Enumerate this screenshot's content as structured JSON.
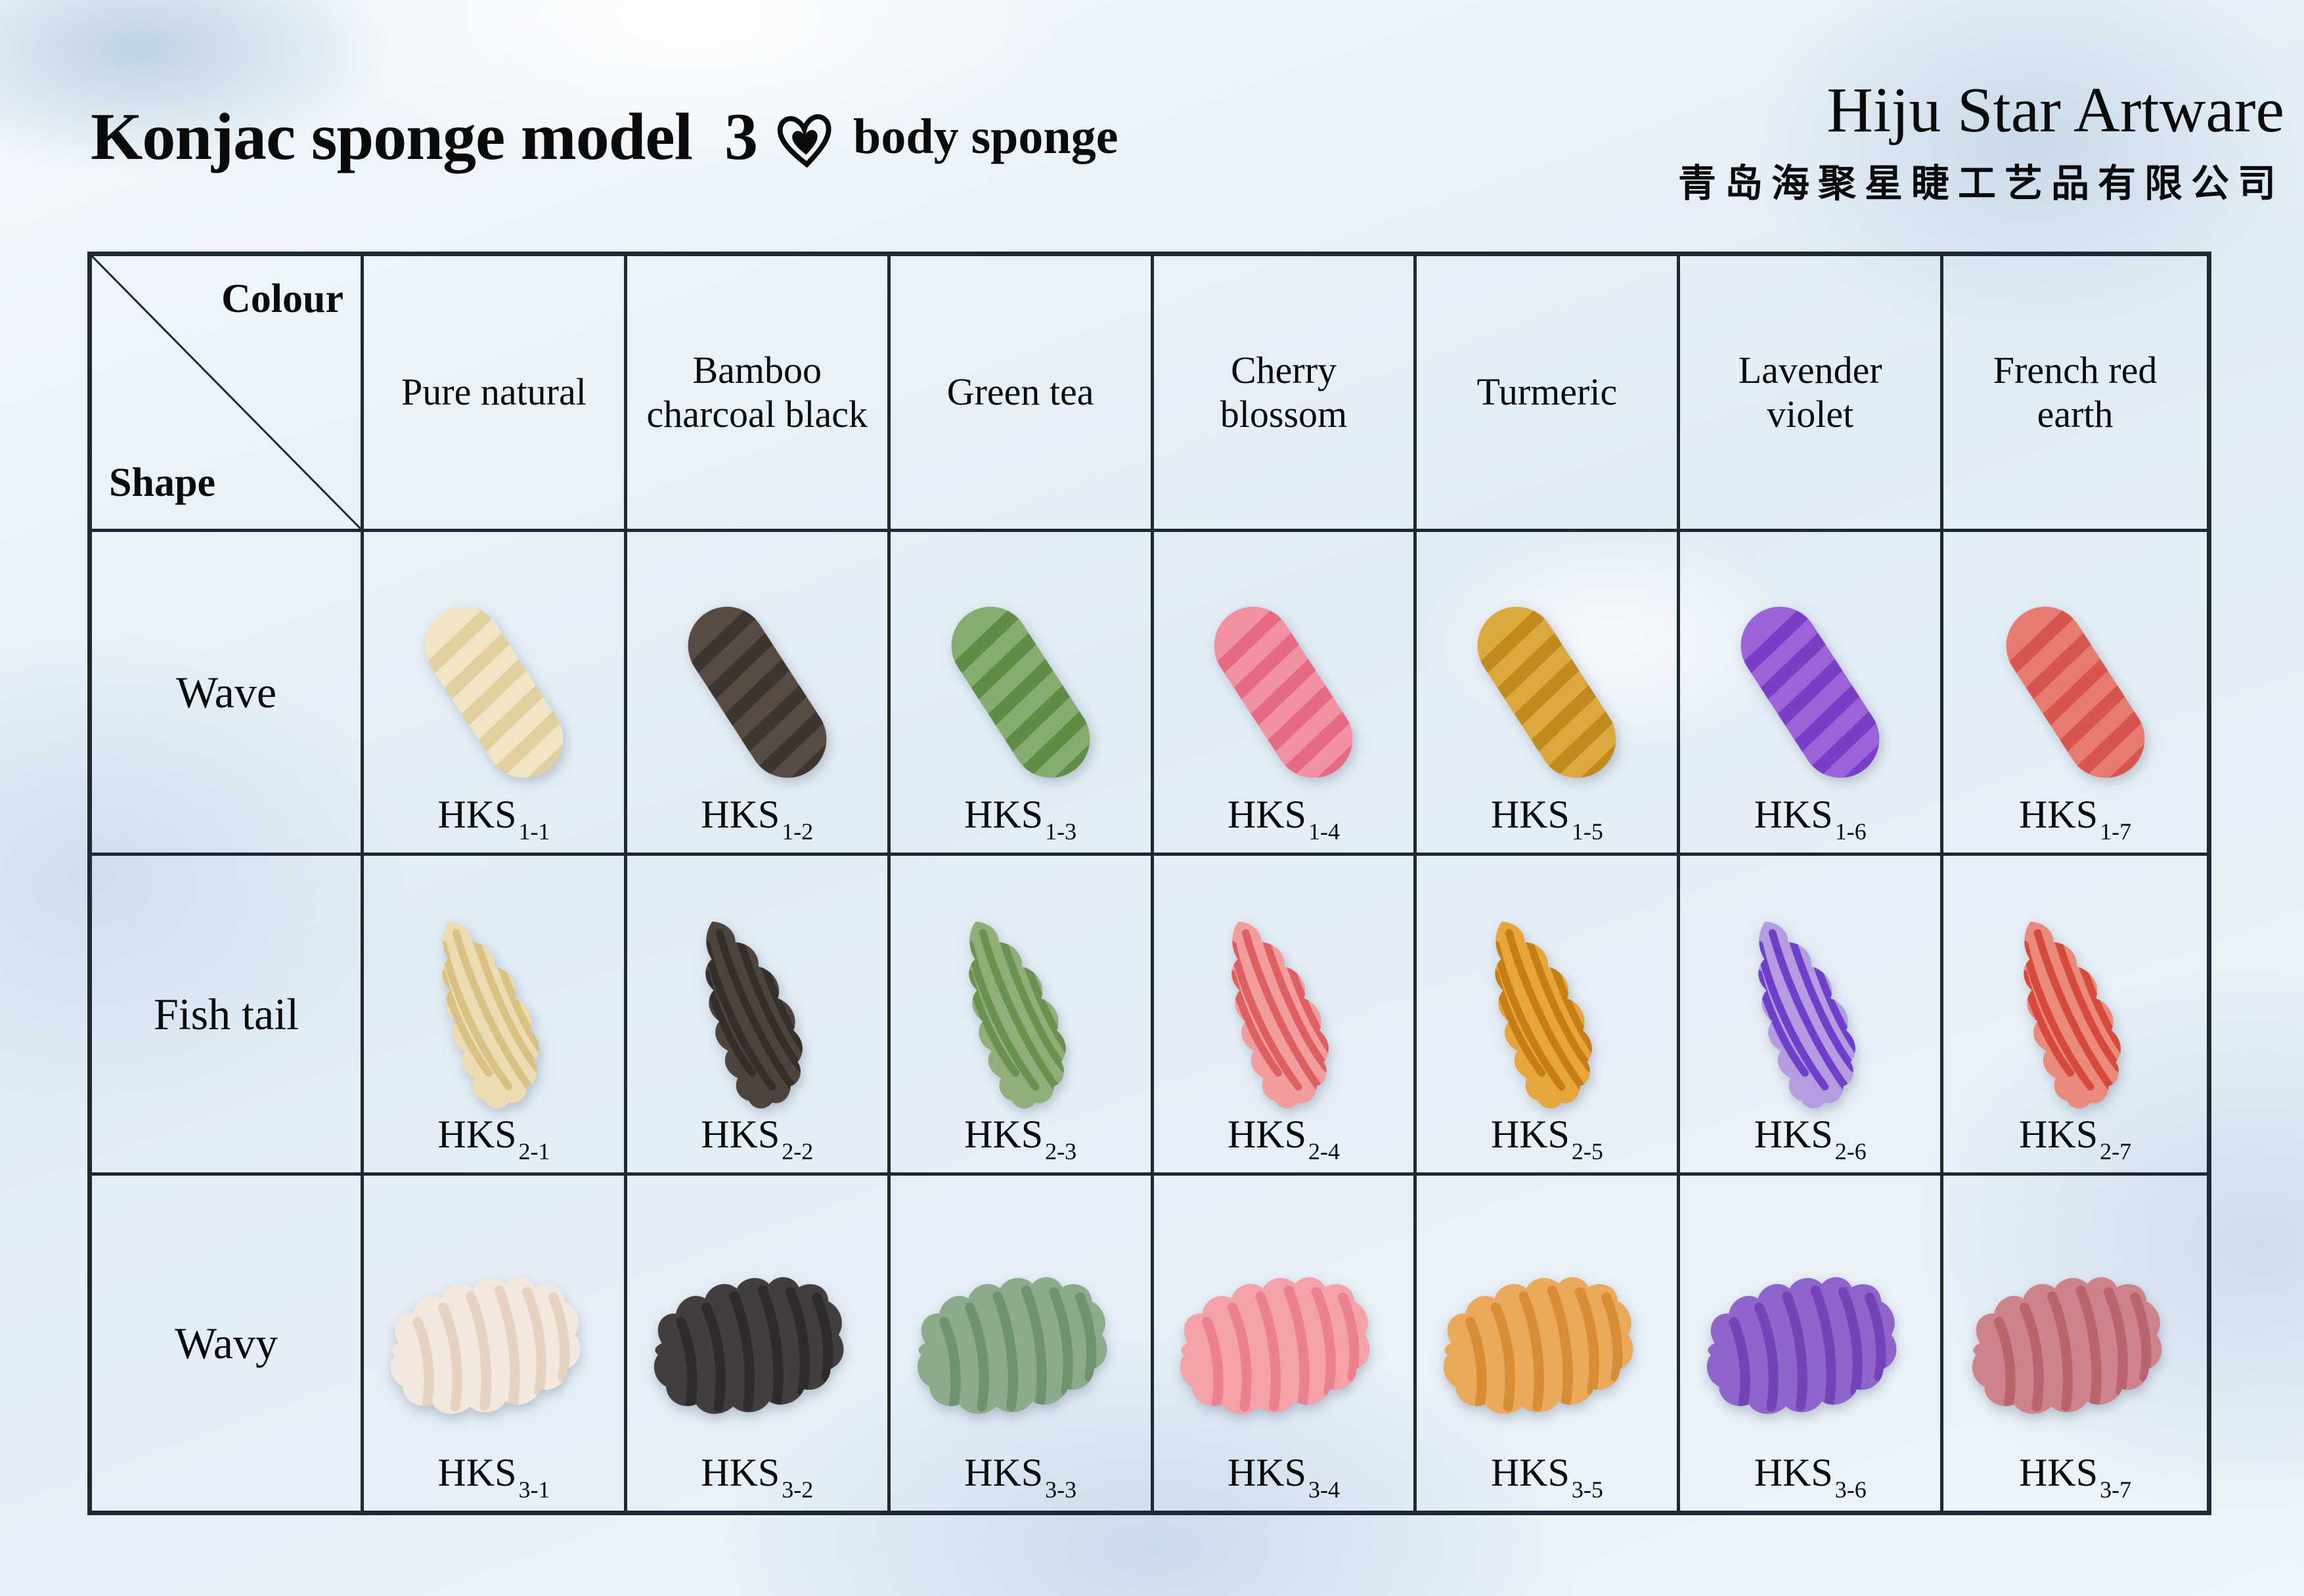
{
  "title": {
    "main": "Konjac sponge model  3",
    "suffix": "body sponge",
    "heart_icon": "heart"
  },
  "brand": {
    "name": "Hiju Star Artware",
    "chinese": "青岛海聚星睫工艺品有限公司"
  },
  "colors": {
    "grid_line": "#1e2936",
    "text": "#0a0a0a",
    "background_tint": "#eaf2f8"
  },
  "table": {
    "corner": {
      "top_label": "Colour",
      "bottom_label": "Shape"
    },
    "code_prefix": "HKS",
    "columns": [
      "Pure natural",
      "Bamboo charcoal black",
      "Green tea",
      "Cherry blossom",
      "Turmeric",
      "Lavender violet",
      "French red earth"
    ],
    "rows": [
      {
        "label": "Wave",
        "shape": "wave",
        "cells": [
          {
            "code": "1-1",
            "base": "#f0e6c6",
            "stripe": "#e0cf9f"
          },
          {
            "code": "1-2",
            "base": "#574b44",
            "stripe": "#3f352f"
          },
          {
            "code": "1-3",
            "base": "#87ac6f",
            "stripe": "#5f8d48"
          },
          {
            "code": "1-4",
            "base": "#f191a1",
            "stripe": "#e66a82"
          },
          {
            "code": "1-5",
            "base": "#dda93e",
            "stripe": "#c18a1f"
          },
          {
            "code": "1-6",
            "base": "#9c62d8",
            "stripe": "#7a3dc6"
          },
          {
            "code": "1-7",
            "base": "#e77a71",
            "stripe": "#d6564d"
          }
        ]
      },
      {
        "label": "Fish tail",
        "shape": "fishtail",
        "cells": [
          {
            "code": "2-1",
            "base": "#ecdcb2",
            "stripe": "#d9c184"
          },
          {
            "code": "2-2",
            "base": "#4e443f",
            "stripe": "#362e2a"
          },
          {
            "code": "2-3",
            "base": "#90ad7a",
            "stripe": "#6a9150"
          },
          {
            "code": "2-4",
            "base": "#f19d9e",
            "stripe": "#de5f62"
          },
          {
            "code": "2-5",
            "base": "#e6a63c",
            "stripe": "#c67d18"
          },
          {
            "code": "2-6",
            "base": "#b59be0",
            "stripe": "#6e40ca"
          },
          {
            "code": "2-7",
            "base": "#ea8a7c",
            "stripe": "#d54a3c"
          }
        ]
      },
      {
        "label": "Wavy",
        "shape": "wavy",
        "cells": [
          {
            "code": "3-1",
            "base": "#f2e8de",
            "stripe": "#e6d2c0"
          },
          {
            "code": "3-2",
            "base": "#423e3f",
            "stripe": "#2f2b2c"
          },
          {
            "code": "3-3",
            "base": "#8dab8c",
            "stripe": "#6f936e"
          },
          {
            "code": "3-4",
            "base": "#f5a1a9",
            "stripe": "#ea8090"
          },
          {
            "code": "3-5",
            "base": "#eaa95b",
            "stripe": "#d78d36"
          },
          {
            "code": "3-6",
            "base": "#9065cb",
            "stripe": "#7543b8"
          },
          {
            "code": "3-7",
            "base": "#ce838a",
            "stripe": "#ba646d"
          }
        ]
      }
    ]
  }
}
